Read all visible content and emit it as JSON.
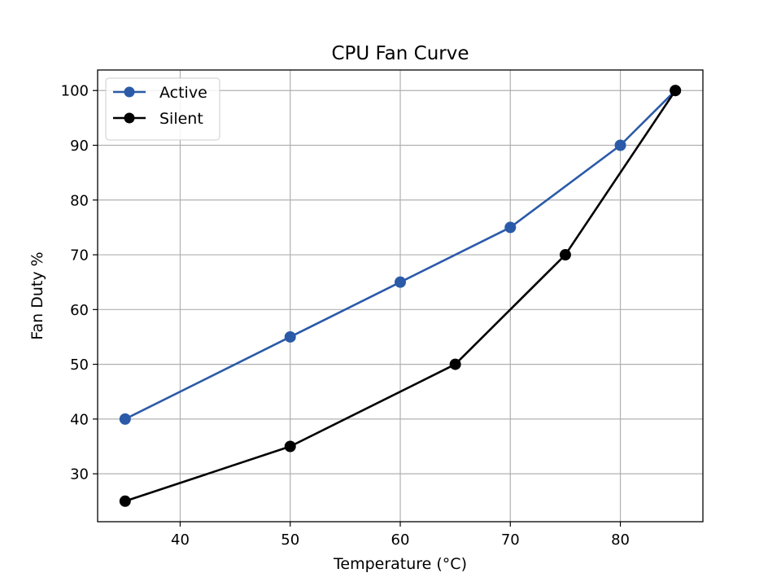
{
  "chart_data": {
    "type": "line",
    "title": "CPU Fan Curve",
    "xlabel": "Temperature (°C)",
    "ylabel": "Fan Duty %",
    "xlim": [
      32.5,
      87.5
    ],
    "ylim": [
      21.25,
      103.75
    ],
    "xticks": [
      40,
      50,
      60,
      70,
      80
    ],
    "yticks": [
      30,
      40,
      50,
      60,
      70,
      80,
      90,
      100
    ],
    "grid": true,
    "legend_position": "top-left",
    "series": [
      {
        "name": "Active",
        "color": "#2b5aa8",
        "x": [
          35,
          50,
          60,
          70,
          80,
          85
        ],
        "y": [
          40,
          55,
          65,
          75,
          90,
          100
        ]
      },
      {
        "name": "Silent",
        "color": "#000000",
        "x": [
          35,
          50,
          65,
          75,
          85
        ],
        "y": [
          25,
          35,
          50,
          70,
          100
        ]
      }
    ]
  }
}
